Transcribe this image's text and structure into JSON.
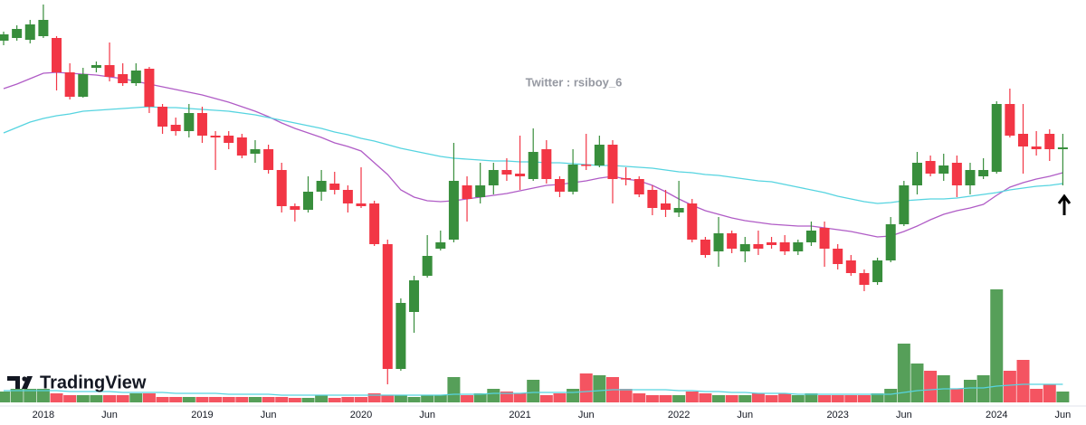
{
  "chart_data": {
    "type": "candlestick",
    "watermark": "Twitter : rsiboy_6",
    "logo": "TradingView",
    "categories": [
      null,
      null,
      null,
      "2018",
      null,
      null,
      null,
      null,
      "Jun",
      null,
      null,
      null,
      null,
      null,
      null,
      "2019",
      null,
      null,
      null,
      null,
      "Jun",
      null,
      null,
      null,
      null,
      null,
      null,
      "2020",
      null,
      null,
      null,
      null,
      "Jun",
      null,
      null,
      null,
      null,
      null,
      null,
      "2021",
      null,
      null,
      null,
      null,
      "Jun",
      null,
      null,
      null,
      null,
      null,
      null,
      "2022",
      null,
      null,
      null,
      null,
      "Jun",
      null,
      null,
      null,
      null,
      null,
      null,
      "2023",
      null,
      null,
      null,
      null,
      "Jun",
      null,
      null,
      null,
      null,
      null,
      null,
      "2024",
      null,
      null,
      null,
      null,
      "Jun"
    ],
    "open": [
      395,
      398,
      396,
      400,
      398,
      360,
      333,
      365,
      368,
      358,
      348,
      364,
      322,
      302,
      295,
      315,
      290,
      290,
      288,
      270,
      275,
      252,
      212,
      208,
      228,
      237,
      230,
      215,
      215,
      170,
      32,
      95,
      135,
      165,
      175,
      235,
      222,
      235,
      252,
      248,
      242,
      275,
      242,
      228,
      258,
      257,
      280,
      243,
      242,
      230,
      215,
      205,
      215,
      175,
      162,
      182,
      162,
      170,
      172,
      172,
      162,
      172,
      188,
      165,
      152,
      138,
      128,
      152,
      192,
      235,
      262,
      248,
      260,
      235,
      245,
      250,
      325,
      292,
      278,
      292,
      275
    ],
    "close": [
      402,
      408,
      413,
      418,
      360,
      333,
      358,
      368,
      355,
      348,
      362,
      322,
      300,
      295,
      315,
      290,
      288,
      282,
      268,
      275,
      252,
      212,
      208,
      228,
      240,
      230,
      215,
      212,
      170,
      32,
      105,
      130,
      157,
      172,
      240,
      220,
      235,
      252,
      247,
      245,
      272,
      242,
      228,
      258,
      257,
      280,
      242,
      242,
      225,
      210,
      208,
      210,
      175,
      158,
      182,
      165,
      170,
      165,
      169,
      162,
      172,
      185,
      165,
      148,
      138,
      125,
      152,
      192,
      235,
      260,
      248,
      257,
      235,
      252,
      252,
      325,
      290,
      278,
      275,
      275,
      277
    ],
    "high": [
      405,
      412,
      418,
      435,
      400,
      370,
      365,
      372,
      393,
      370,
      370,
      366,
      325,
      310,
      325,
      322,
      295,
      295,
      292,
      285,
      280,
      260,
      215,
      245,
      252,
      250,
      235,
      255,
      218,
      175,
      110,
      135,
      180,
      185,
      282,
      245,
      260,
      260,
      265,
      290,
      298,
      285,
      245,
      275,
      292,
      290,
      285,
      255,
      245,
      235,
      230,
      240,
      220,
      178,
      200,
      185,
      178,
      185,
      178,
      180,
      175,
      195,
      195,
      170,
      158,
      142,
      155,
      200,
      240,
      272,
      268,
      270,
      268,
      260,
      265,
      328,
      342,
      325,
      295,
      297,
      292
    ],
    "low": [
      390,
      395,
      392,
      398,
      340,
      330,
      332,
      360,
      350,
      345,
      345,
      315,
      292,
      290,
      288,
      282,
      252,
      275,
      265,
      260,
      248,
      205,
      195,
      205,
      218,
      225,
      205,
      210,
      168,
      15,
      30,
      72,
      133,
      163,
      172,
      195,
      215,
      225,
      240,
      230,
      240,
      237,
      222,
      225,
      252,
      255,
      215,
      235,
      222,
      202,
      200,
      200,
      172,
      155,
      145,
      160,
      150,
      158,
      165,
      158,
      158,
      168,
      145,
      142,
      135,
      118,
      125,
      150,
      190,
      225,
      245,
      240,
      222,
      225,
      242,
      248,
      288,
      248,
      268,
      262,
      235
    ],
    "up_color": "#388e3c",
    "down_color": "#f23645",
    "ylim": [
      0,
      440
    ],
    "lines": [
      {
        "color": "#b05cc6",
        "values": [
          342,
          347,
          353,
          359,
          360,
          359,
          358,
          357,
          355,
          353,
          350,
          347,
          344,
          341,
          338,
          335,
          331,
          327,
          322,
          317,
          311,
          304,
          298,
          293,
          288,
          282,
          278,
          273,
          260,
          247,
          230,
          222,
          218,
          217,
          218,
          220,
          222,
          224,
          226,
          229,
          232,
          235,
          236,
          238,
          240,
          243,
          245,
          242,
          240,
          235,
          228,
          220,
          213,
          207,
          203,
          199,
          196,
          194,
          192,
          191,
          190,
          190,
          188,
          186,
          184,
          181,
          178,
          179,
          184,
          190,
          197,
          203,
          207,
          210,
          214,
          224,
          233,
          238,
          242,
          245,
          249
        ]
      },
      {
        "color": "#56d4e0",
        "values": [
          293,
          299,
          305,
          309,
          312,
          314,
          317,
          318,
          319,
          320,
          321,
          322,
          321,
          321,
          320,
          319,
          318,
          317,
          315,
          313,
          310,
          307,
          304,
          301,
          298,
          294,
          291,
          287,
          284,
          280,
          276,
          273,
          270,
          267,
          265,
          264,
          263,
          262,
          262,
          261,
          261,
          260,
          260,
          259,
          258,
          257,
          257,
          256,
          255,
          254,
          252,
          250,
          249,
          247,
          246,
          244,
          242,
          240,
          239,
          236,
          233,
          230,
          227,
          223,
          220,
          217,
          215,
          216,
          218,
          219,
          220,
          220,
          221,
          223,
          225,
          227,
          230,
          232,
          234,
          235,
          237
        ]
      }
    ],
    "volume": [
      12,
      15,
      15,
      15,
      10,
      8,
      8,
      8,
      8,
      8,
      10,
      10,
      6,
      6,
      6,
      6,
      6,
      6,
      6,
      6,
      6,
      6,
      5,
      5,
      8,
      5,
      6,
      6,
      10,
      8,
      8,
      6,
      8,
      8,
      28,
      8,
      10,
      15,
      12,
      10,
      25,
      8,
      10,
      15,
      32,
      30,
      28,
      15,
      10,
      8,
      8,
      8,
      12,
      10,
      8,
      8,
      8,
      10,
      8,
      10,
      8,
      10,
      8,
      8,
      8,
      8,
      10,
      15,
      65,
      43,
      35,
      30,
      15,
      25,
      30,
      125,
      35,
      47,
      15,
      20,
      12
    ],
    "volume_ylim": [
      0,
      440
    ],
    "volume_ma": {
      "color": "#56d4e0",
      "values": [
        13,
        13,
        13,
        13,
        13,
        12,
        12,
        12,
        12,
        11,
        11,
        11,
        11,
        10,
        10,
        10,
        10,
        9,
        9,
        9,
        9,
        8,
        8,
        8,
        8,
        8,
        8,
        8,
        8,
        8,
        8,
        8,
        8,
        8,
        9,
        9,
        9,
        10,
        10,
        10,
        11,
        11,
        11,
        11,
        12,
        13,
        14,
        14,
        14,
        14,
        14,
        13,
        13,
        12,
        12,
        11,
        11,
        10,
        10,
        10,
        9,
        9,
        9,
        9,
        9,
        9,
        9,
        9,
        11,
        13,
        14,
        15,
        15,
        16,
        16,
        18,
        19,
        20,
        20,
        20,
        20
      ]
    }
  }
}
